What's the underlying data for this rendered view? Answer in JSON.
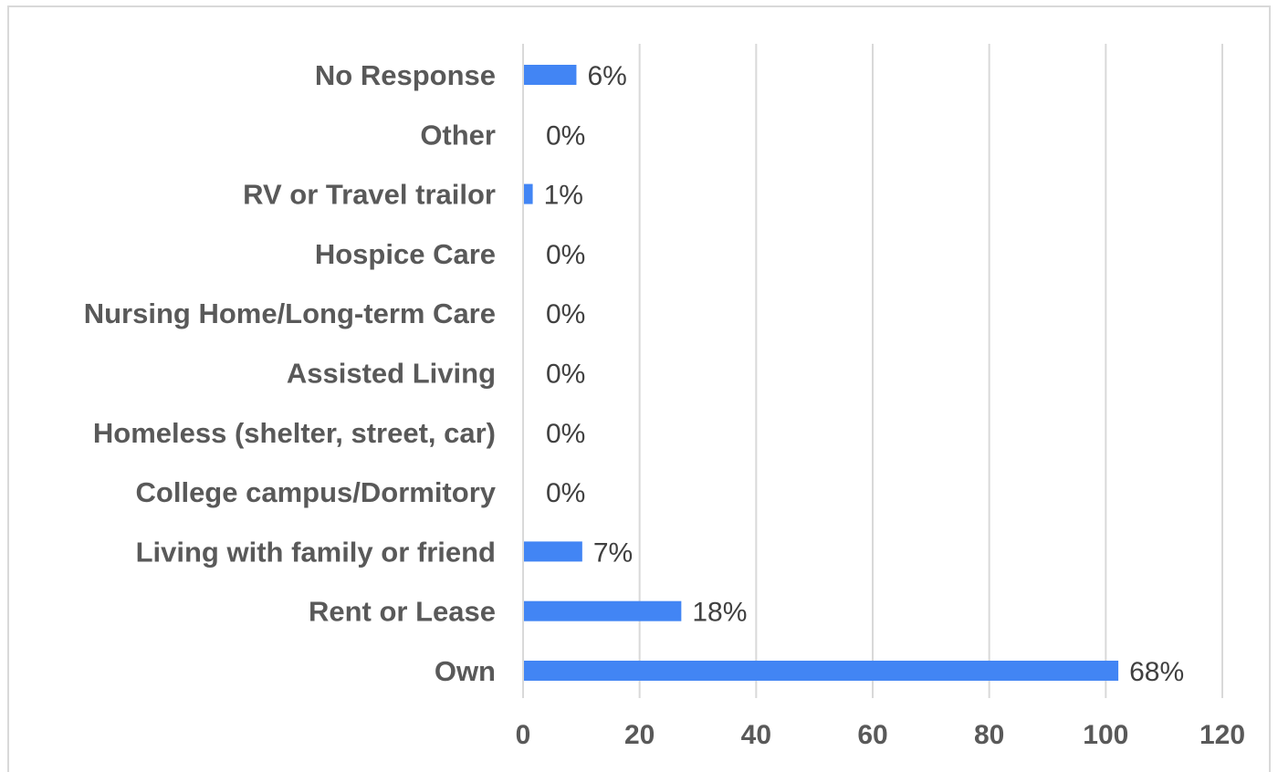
{
  "chart_data": {
    "type": "bar",
    "orientation": "horizontal",
    "categories": [
      "No Response",
      "Other",
      "RV or Travel trailor",
      "Hospice Care",
      "Nursing Home/Long-term Care",
      "Assisted Living",
      "Homeless (shelter, street, car)",
      "College campus/Dormitory",
      "Living with family or friend",
      "Rent or Lease",
      "Own"
    ],
    "values": [
      9,
      0,
      1.5,
      0,
      0,
      0,
      0,
      0,
      10,
      27,
      102
    ],
    "data_labels": [
      "6%",
      "0%",
      "1%",
      "0%",
      "0%",
      "0%",
      "0%",
      "0%",
      "7%",
      "18%",
      "68%"
    ],
    "x_ticks": [
      "0",
      "20",
      "40",
      "60",
      "80",
      "100",
      "120"
    ],
    "xlim": [
      0,
      120
    ],
    "grid": true,
    "legend": "none",
    "colors": {
      "bar": "#4285f4",
      "grid": "#d9d9d9",
      "text": "#595959"
    }
  }
}
